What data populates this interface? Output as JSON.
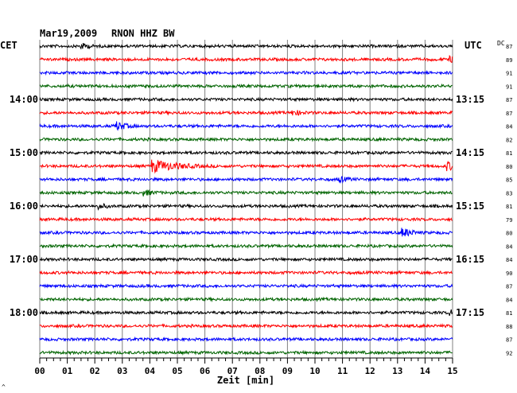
{
  "header": {
    "date": "Mar19,2009",
    "station": "RNON HHZ BW",
    "left_tz": "CET",
    "right_tz": "UTC",
    "dc_label": "DC"
  },
  "colors": {
    "background": "#ffffff",
    "grid": "#808080",
    "axis": "#000000",
    "trace_cycle": [
      "#000000",
      "#ff0000",
      "#0000ff",
      "#006400"
    ]
  },
  "footer": {
    "x_axis_title": "Zeit [min]",
    "corner_mark": "^"
  },
  "chart_data": {
    "type": "line",
    "title": "Mar19,2009    RNON HHZ BW",
    "xlabel": "Zeit [min]",
    "x_ticks": [
      "00",
      "01",
      "02",
      "03",
      "04",
      "05",
      "06",
      "07",
      "08",
      "09",
      "10",
      "11",
      "12",
      "13",
      "14",
      "15"
    ],
    "xlim": [
      0,
      15
    ],
    "minor_ticks_per_minute": 4,
    "grid_vertical": true,
    "rows_per_hour": 4,
    "left_hour_labels": [
      "14:00",
      "15:00",
      "16:00",
      "17:00",
      "18:00"
    ],
    "right_hour_labels": [
      "13:15",
      "14:15",
      "15:15",
      "16:15",
      "17:15"
    ],
    "trace_count": 24,
    "dc_offsets": [
      87,
      89,
      91,
      91,
      87,
      87,
      84,
      82,
      81,
      80,
      85,
      83,
      81,
      79,
      80,
      84,
      84,
      90,
      87,
      84,
      81,
      88,
      87,
      92
    ],
    "events": [
      {
        "row": 0,
        "minute": 1.5,
        "amplitude": "small"
      },
      {
        "row": 1,
        "minute": 14.9,
        "amplitude": "small"
      },
      {
        "row": 5,
        "minute": 9.2,
        "amplitude": "small"
      },
      {
        "row": 6,
        "minute": 2.8,
        "amplitude": "medium"
      },
      {
        "row": 9,
        "minute": 4.1,
        "amplitude": "large"
      },
      {
        "row": 9,
        "minute": 14.8,
        "amplitude": "medium"
      },
      {
        "row": 10,
        "minute": 10.9,
        "amplitude": "small"
      },
      {
        "row": 11,
        "minute": 3.8,
        "amplitude": "small"
      },
      {
        "row": 12,
        "minute": 2.1,
        "amplitude": "small"
      },
      {
        "row": 14,
        "minute": 13.2,
        "amplitude": "medium"
      },
      {
        "row": 20,
        "minute": 14.9,
        "amplitude": "small"
      }
    ]
  }
}
